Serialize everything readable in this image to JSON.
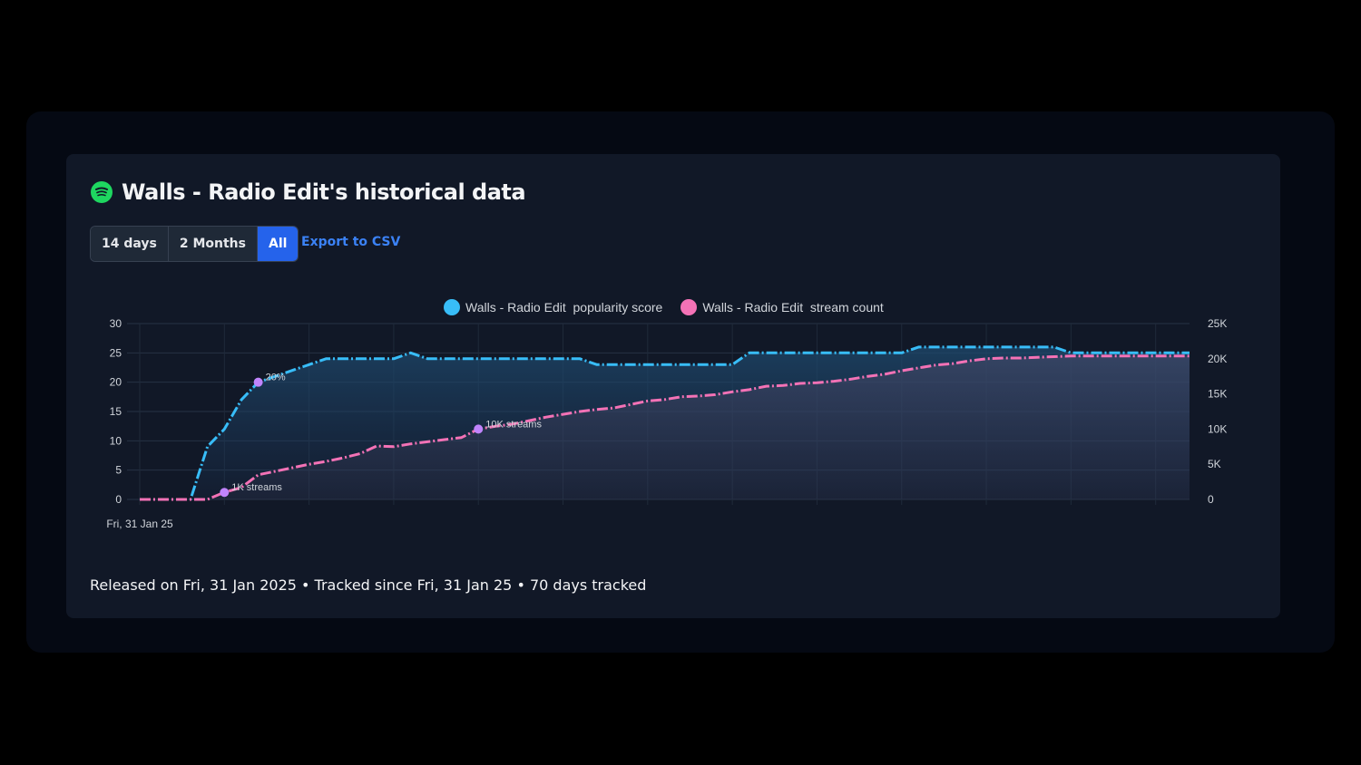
{
  "header": {
    "title": "Walls - Radio Edit's historical data",
    "icon": "spotify-icon"
  },
  "range_buttons": [
    {
      "label": "14 days",
      "active": false
    },
    {
      "label": "2 Months",
      "active": false
    },
    {
      "label": "All",
      "active": true
    }
  ],
  "export_label": "Export to CSV",
  "footer": "Released on Fri, 31 Jan 2025 • Tracked since Fri, 31 Jan 25 • 70 days tracked",
  "colors": {
    "popularity": "#38bdf8",
    "streams": "#f472b6",
    "marker": "#c084fc",
    "accent": "#2563eb"
  },
  "chart_data": {
    "type": "line",
    "title": "",
    "x_start_label": "Fri, 31 Jan 25",
    "legend_position": "top",
    "grid": true,
    "series": [
      {
        "name": "Walls - Radio Edit  popularity score",
        "axis": "left",
        "ylim": [
          0,
          30
        ],
        "ticks": [
          "0",
          "5",
          "10",
          "15",
          "20",
          "25",
          "30"
        ],
        "values": [
          0,
          0,
          0,
          0,
          9,
          12,
          17,
          20,
          21,
          22,
          23,
          24,
          24,
          24,
          24,
          24,
          25,
          24,
          24,
          24,
          24,
          24,
          24,
          24,
          24,
          24,
          24,
          23,
          23,
          23,
          23,
          23,
          23,
          23,
          23,
          23,
          25,
          25,
          25,
          25,
          25,
          25,
          25,
          25,
          25,
          25,
          26,
          26,
          26,
          26,
          26,
          26,
          26,
          26,
          26,
          25,
          25,
          25,
          25,
          25,
          25,
          25,
          25
        ],
        "annotations": [
          {
            "index": 7,
            "label": "20%"
          }
        ]
      },
      {
        "name": "Walls - Radio Edit  stream count",
        "axis": "right",
        "ylim": [
          0,
          25000
        ],
        "ticks": [
          "0",
          "5K",
          "10K",
          "15K",
          "20K",
          "25K"
        ],
        "values": [
          0,
          0,
          0,
          0,
          0,
          1000,
          1700,
          3500,
          4000,
          4500,
          5000,
          5400,
          5900,
          6500,
          7600,
          7500,
          7900,
          8200,
          8500,
          8800,
          10000,
          10400,
          10700,
          11200,
          11700,
          12100,
          12500,
          12800,
          13000,
          13500,
          14000,
          14200,
          14600,
          14700,
          14900,
          15300,
          15600,
          16100,
          16200,
          16500,
          16600,
          16800,
          17100,
          17500,
          17800,
          18300,
          18700,
          19100,
          19300,
          19700,
          20000,
          20100,
          20100,
          20200,
          20300,
          20400,
          20400,
          20400,
          20400,
          20400,
          20400,
          20400,
          20400
        ],
        "annotations": [
          {
            "index": 5,
            "label": "1K streams"
          },
          {
            "index": 20,
            "label": "10K streams"
          }
        ]
      }
    ]
  }
}
